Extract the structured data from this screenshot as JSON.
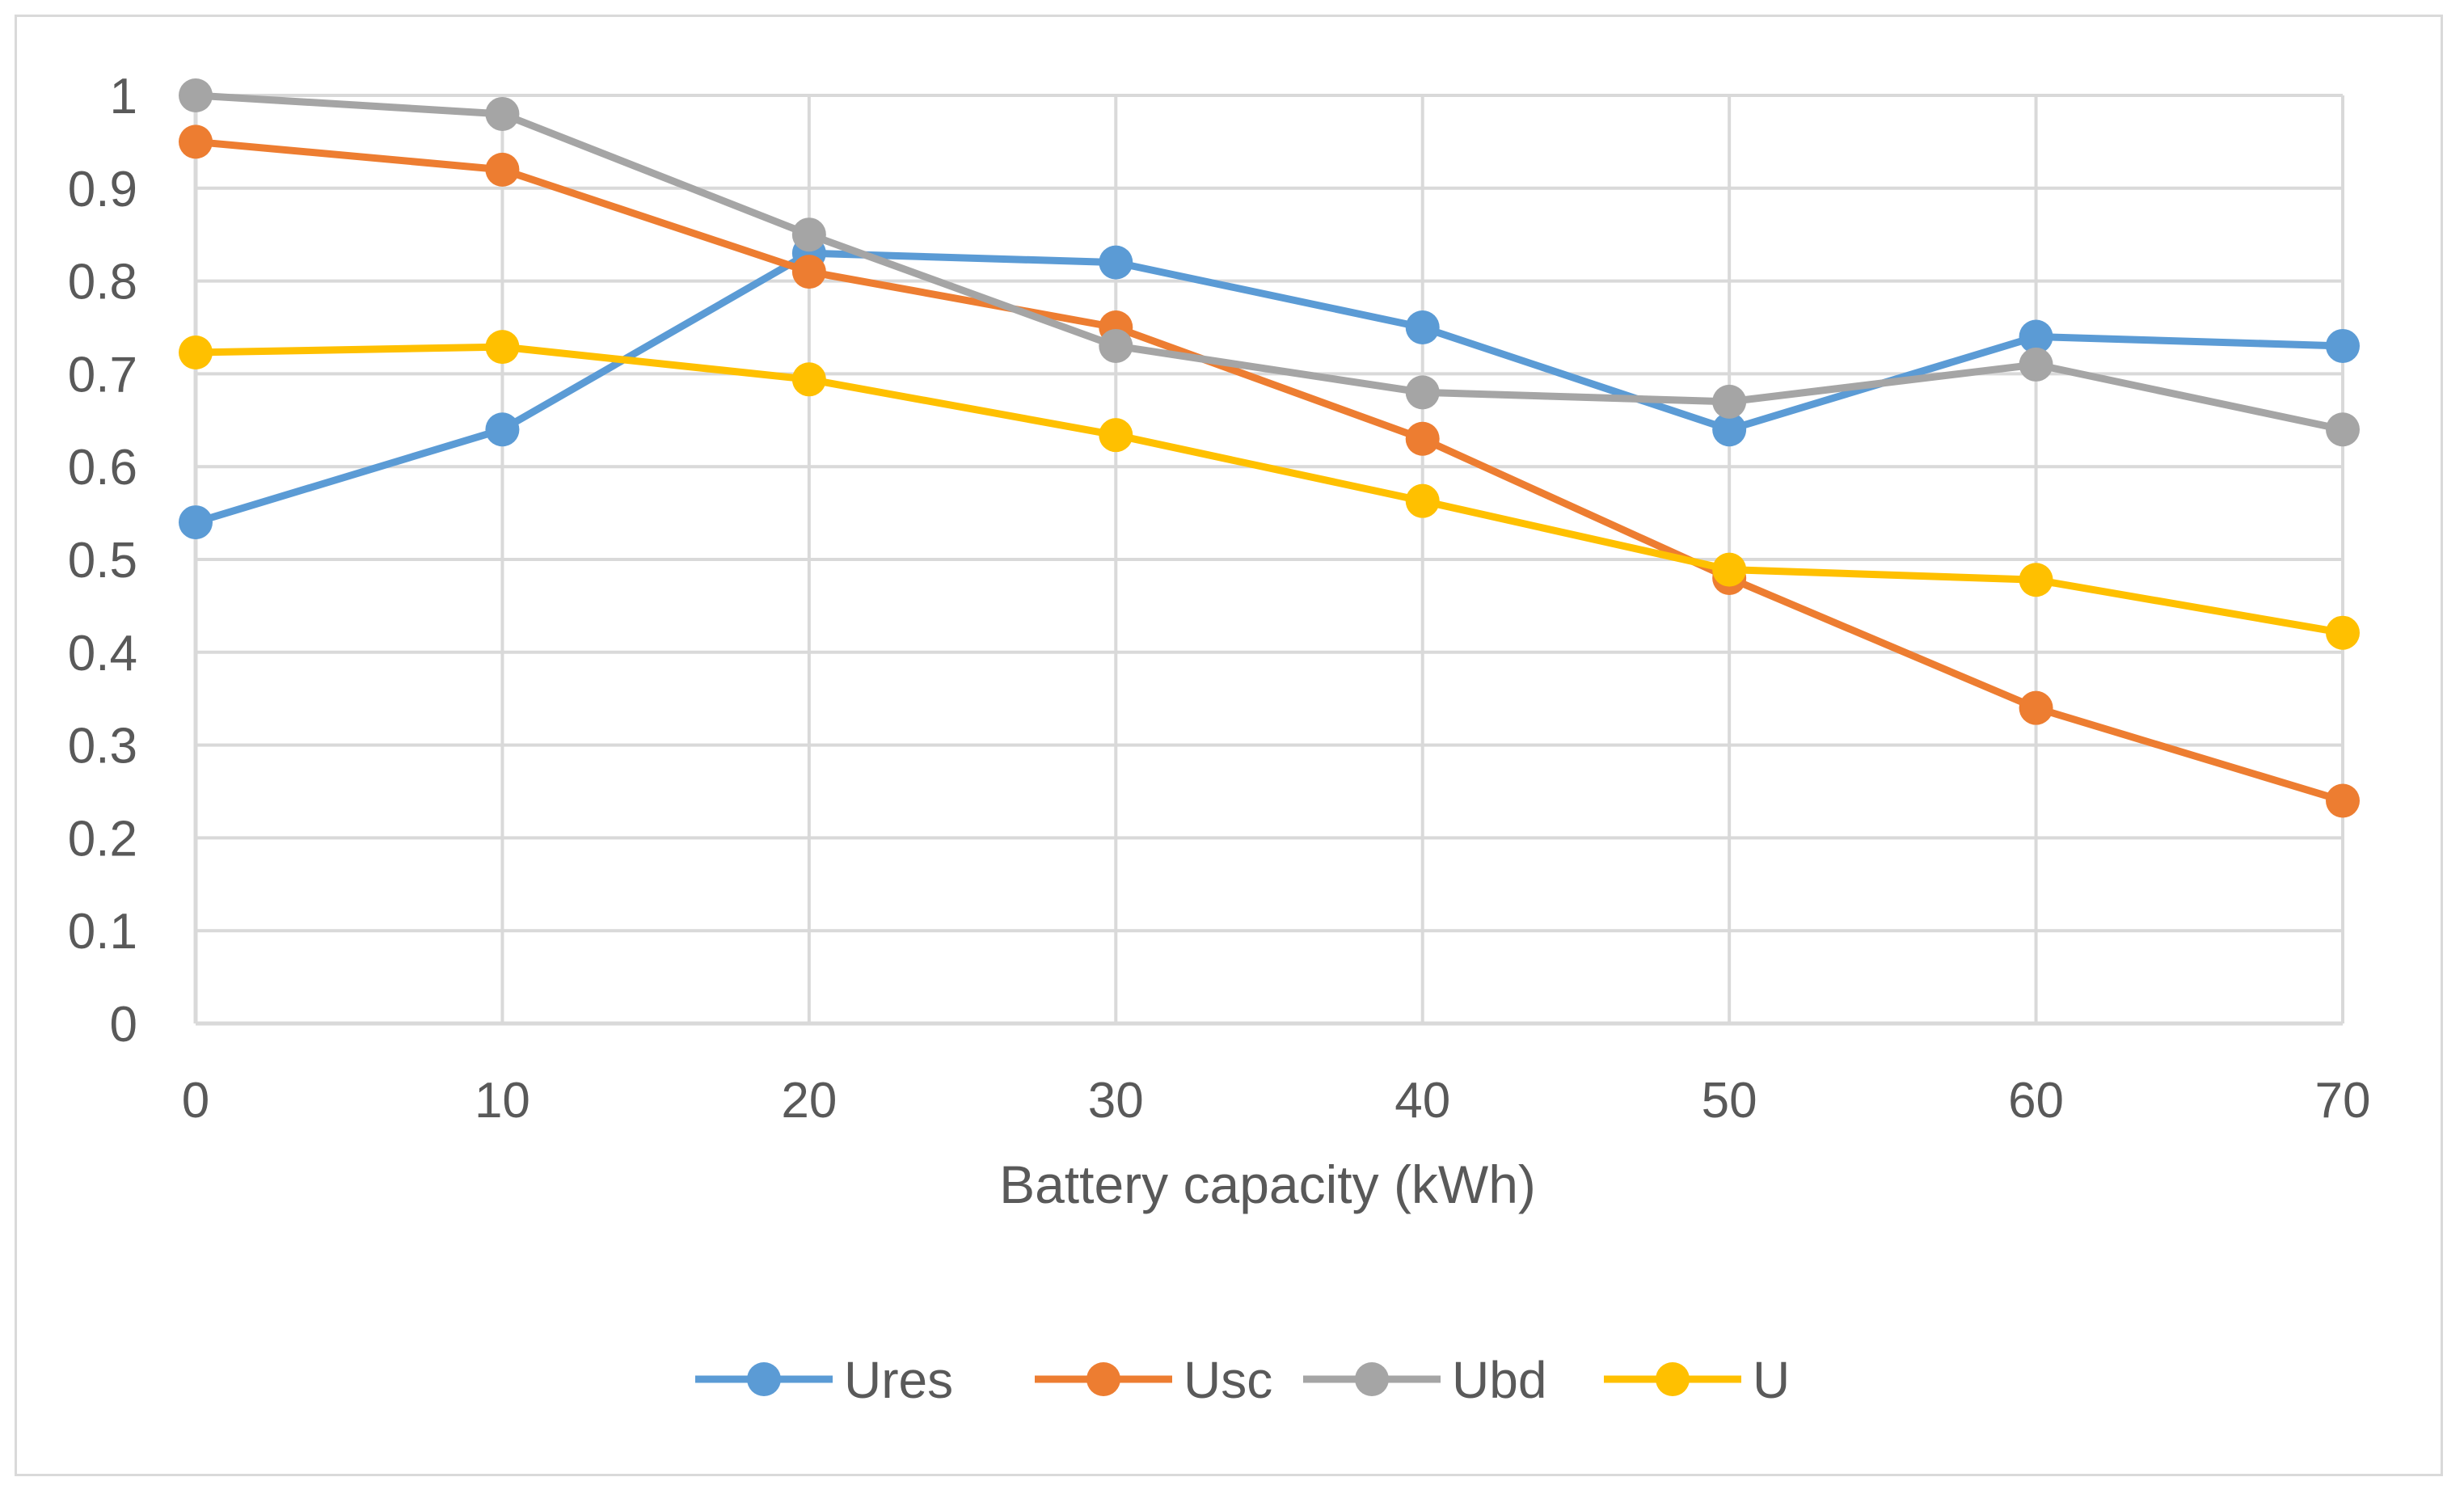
{
  "chart_data": {
    "type": "line",
    "title": "",
    "xlabel": "Battery capacity (kWh)",
    "ylabel": "",
    "x": [
      0,
      10,
      20,
      30,
      40,
      50,
      60,
      70
    ],
    "x_tick_labels": [
      "0",
      "10",
      "20",
      "30",
      "40",
      "50",
      "60",
      "70"
    ],
    "xlim": [
      0,
      70
    ],
    "ylim": [
      0,
      1
    ],
    "y_ticks": [
      0,
      0.1,
      0.2,
      0.3,
      0.4,
      0.5,
      0.6,
      0.7,
      0.8,
      0.9,
      1
    ],
    "y_tick_labels": [
      "0",
      "0.1",
      "0.2",
      "0.3",
      "0.4",
      "0.5",
      "0.6",
      "0.7",
      "0.8",
      "0.9",
      "1"
    ],
    "grid": true,
    "legend_position": "bottom",
    "series": [
      {
        "name": "Ures",
        "color": "#5b9bd5",
        "values": [
          0.54,
          0.64,
          0.83,
          0.82,
          0.75,
          0.64,
          0.74,
          0.73
        ]
      },
      {
        "name": "Usc",
        "color": "#ed7d31",
        "values": [
          0.95,
          0.92,
          0.81,
          0.75,
          0.63,
          0.48,
          0.34,
          0.24
        ]
      },
      {
        "name": "Ubd",
        "color": "#a5a5a5",
        "values": [
          1.0,
          0.98,
          0.85,
          0.73,
          0.68,
          0.67,
          0.71,
          0.64
        ]
      },
      {
        "name": "U",
        "color": "#ffc000",
        "values": [
          0.723,
          0.729,
          0.694,
          0.634,
          0.563,
          0.489,
          0.478,
          0.421
        ]
      }
    ]
  }
}
